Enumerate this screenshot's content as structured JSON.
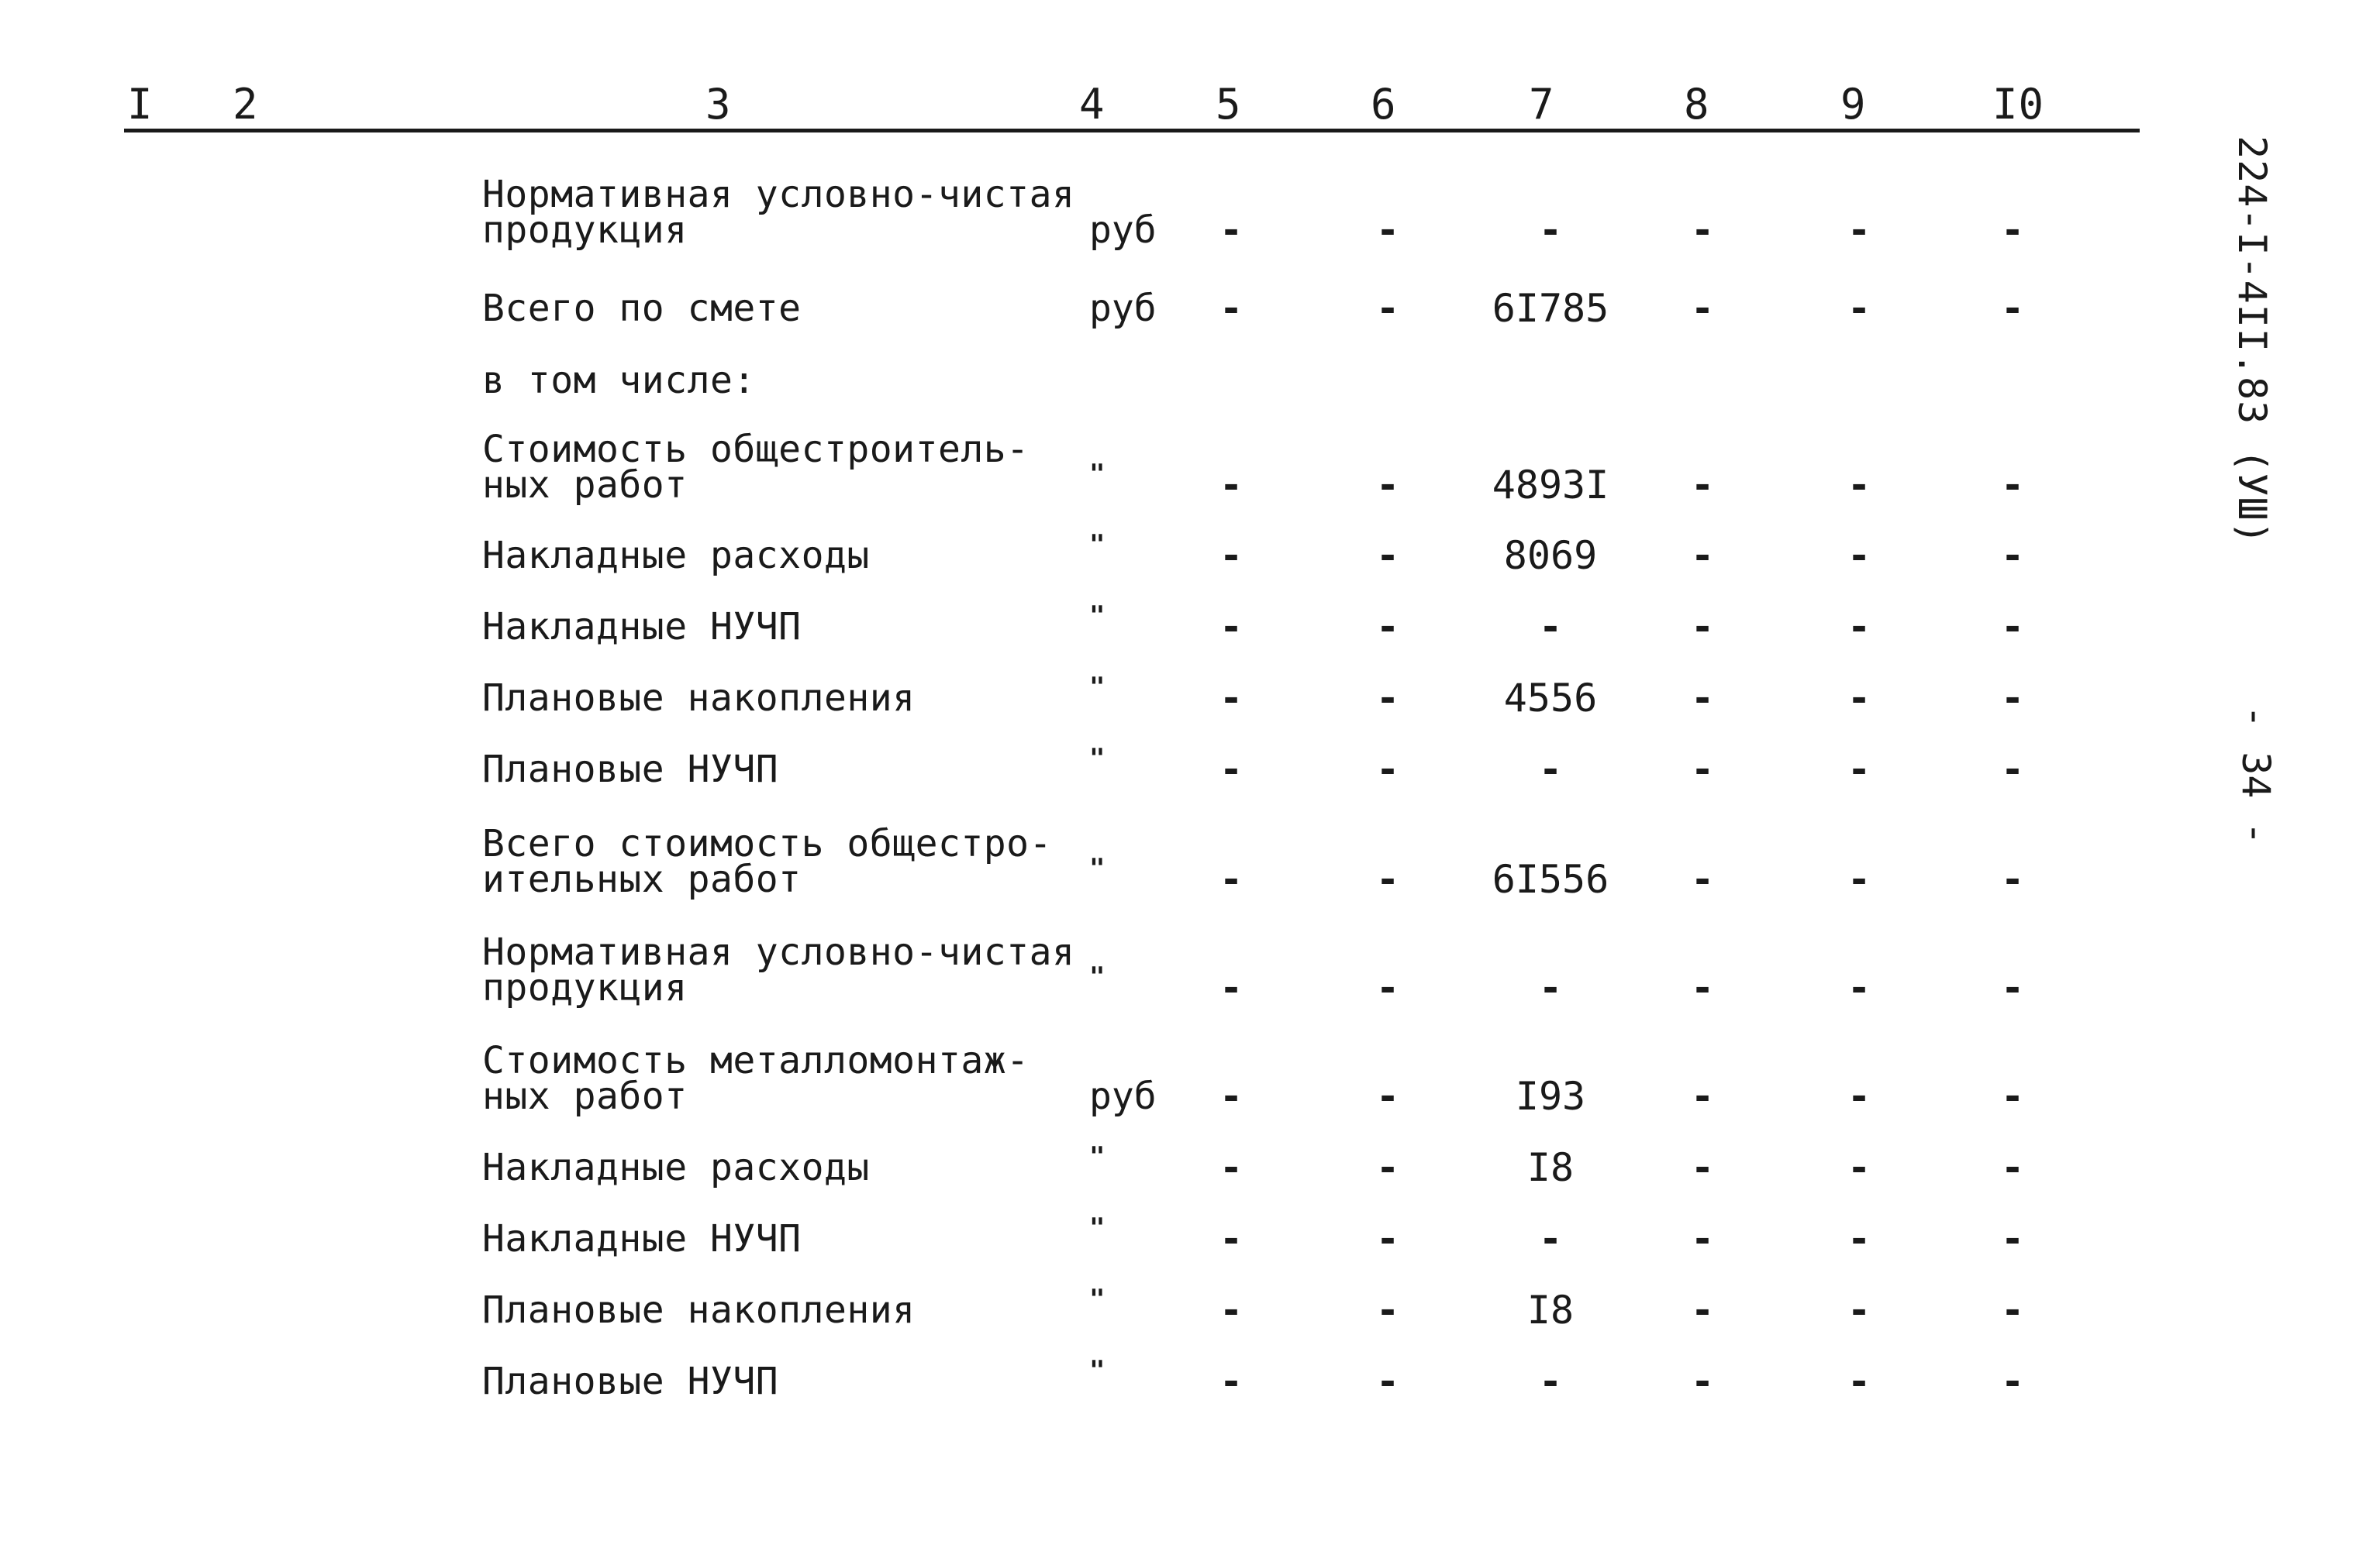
{
  "header": {
    "columns": [
      "I",
      "2",
      "3",
      "4",
      "5",
      "6",
      "7",
      "8",
      "9",
      "I0"
    ]
  },
  "side": {
    "doc_code": "224-I-4II.83 (УШ)",
    "page_number": "- 34 -"
  },
  "rows": [
    {
      "name": "Нормативная условно-чистая\nпродукция",
      "unit": "руб",
      "c5": "-",
      "c6": "-",
      "c7": "-",
      "c8": "-",
      "c9": "-",
      "c10": "-"
    },
    {
      "name": "Всего по смете",
      "unit": "руб",
      "c5": "-",
      "c6": "-",
      "c7": "6I785",
      "c8": "-",
      "c9": "-",
      "c10": "-"
    },
    {
      "name": "в том числе:",
      "unit": "",
      "c5": "",
      "c6": "",
      "c7": "",
      "c8": "",
      "c9": "",
      "c10": ""
    },
    {
      "name": "Стоимость общестроитель-\nных работ",
      "unit": "\"",
      "c5": "-",
      "c6": "-",
      "c7": "4893I",
      "c8": "-",
      "c9": "-",
      "c10": "-"
    },
    {
      "name": "Накладные расходы",
      "unit": "\"",
      "c5": "-",
      "c6": "-",
      "c7": "8069",
      "c8": "-",
      "c9": "-",
      "c10": "-"
    },
    {
      "name": "Накладные НУЧП",
      "unit": "\"",
      "c5": "-",
      "c6": "-",
      "c7": "-",
      "c8": "-",
      "c9": "-",
      "c10": "-"
    },
    {
      "name": "Плановые накопления",
      "unit": "\"",
      "c5": "-",
      "c6": "-",
      "c7": "4556",
      "c8": "-",
      "c9": "-",
      "c10": "-"
    },
    {
      "name": "Плановые НУЧП",
      "unit": "\"",
      "c5": "-",
      "c6": "-",
      "c7": "-",
      "c8": "-",
      "c9": "-",
      "c10": "-"
    },
    {
      "name": "Всего стоимость общестро-\nительных работ",
      "unit": "\"",
      "c5": "-",
      "c6": "-",
      "c7": "6I556",
      "c8": "-",
      "c9": "-",
      "c10": "-"
    },
    {
      "name": "Нормативная условно-чистая\nпродукция",
      "unit": "\"",
      "c5": "-",
      "c6": "-",
      "c7": "-",
      "c8": "-",
      "c9": "-",
      "c10": "-"
    },
    {
      "name": "Стоимость металломонтаж-\nных работ",
      "unit": "руб",
      "c5": "-",
      "c6": "-",
      "c7": "I93",
      "c8": "-",
      "c9": "-",
      "c10": "-"
    },
    {
      "name": "Накладные расходы",
      "unit": "\"",
      "c5": "-",
      "c6": "-",
      "c7": "I8",
      "c8": "-",
      "c9": "-",
      "c10": "-"
    },
    {
      "name": "Накладные НУЧП",
      "unit": "\"",
      "c5": "-",
      "c6": "-",
      "c7": "-",
      "c8": "-",
      "c9": "-",
      "c10": "-"
    },
    {
      "name": "Плановые накопления",
      "unit": "\"",
      "c5": "-",
      "c6": "-",
      "c7": "I8",
      "c8": "-",
      "c9": "-",
      "c10": "-"
    },
    {
      "name": "Плановые НУЧП",
      "unit": "\"",
      "c5": "-",
      "c6": "-",
      "c7": "-",
      "c8": "-",
      "c9": "-",
      "c10": "-"
    }
  ]
}
